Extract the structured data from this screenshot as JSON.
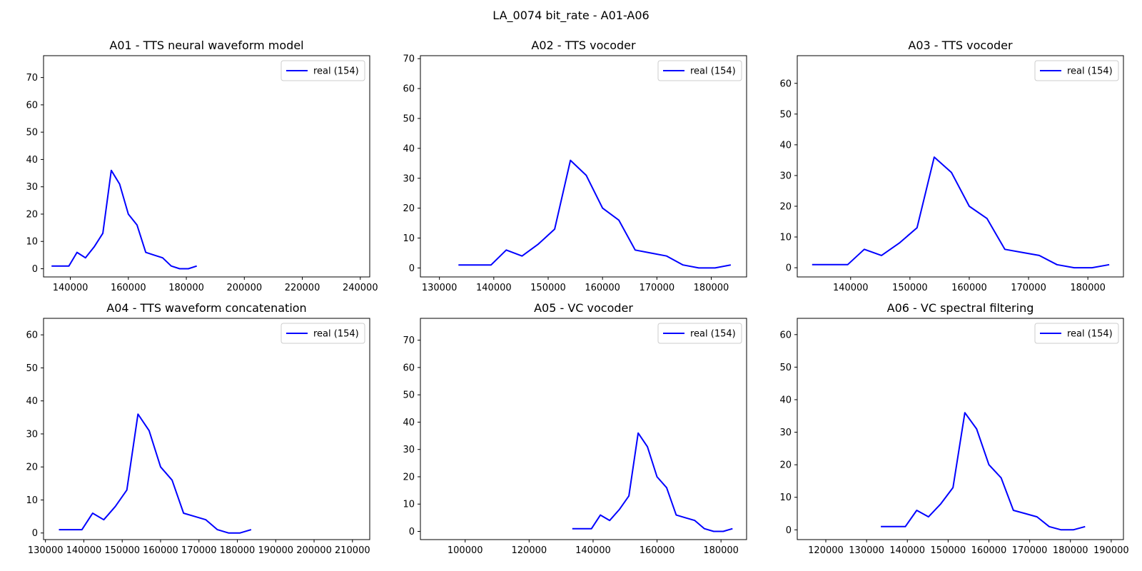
{
  "figure": {
    "suptitle": "LA_0074 bit_rate - A01-A06",
    "line_color": "#0000ff"
  },
  "chart_data": [
    {
      "type": "line",
      "title": "A01 - TTS neural waveform model",
      "xlabel": "",
      "ylabel": "",
      "xlim": [
        130750,
        243250
      ],
      "ylim": [
        -3,
        78
      ],
      "xticks": [
        140000,
        160000,
        180000,
        200000,
        220000,
        240000
      ],
      "yticks": [
        0,
        10,
        20,
        30,
        40,
        50,
        60,
        70
      ],
      "grid": false,
      "legend": "upper right",
      "series": [
        {
          "name": "real (154)",
          "color": "#0000ff",
          "x": [
            133500,
            136500,
            139500,
            142300,
            145200,
            148200,
            151200,
            154100,
            157000,
            160000,
            163000,
            166000,
            168900,
            171800,
            174800,
            177700,
            180700,
            183600
          ],
          "y": [
            1,
            1,
            1,
            6,
            4,
            8,
            13,
            36,
            31,
            20,
            16,
            6,
            5,
            4,
            1,
            0,
            0,
            1
          ]
        }
      ]
    },
    {
      "type": "line",
      "title": "A02 - TTS vocoder",
      "xlabel": "",
      "ylabel": "",
      "xlim": [
        126500,
        186500
      ],
      "ylim": [
        -3,
        71
      ],
      "xticks": [
        130000,
        140000,
        150000,
        160000,
        170000,
        180000
      ],
      "yticks": [
        0,
        10,
        20,
        30,
        40,
        50,
        60,
        70
      ],
      "grid": false,
      "legend": "upper right",
      "series": [
        {
          "name": "real (154)",
          "color": "#0000ff",
          "x": [
            133500,
            136500,
            139500,
            142300,
            145200,
            148200,
            151200,
            154100,
            157000,
            160000,
            163000,
            166000,
            168900,
            171800,
            174800,
            177700,
            180700,
            183600
          ],
          "y": [
            1,
            1,
            1,
            6,
            4,
            8,
            13,
            36,
            31,
            20,
            16,
            6,
            5,
            4,
            1,
            0,
            0,
            1
          ]
        }
      ]
    },
    {
      "type": "line",
      "title": "A03 - TTS vocoder",
      "xlabel": "",
      "ylabel": "",
      "xlim": [
        131000,
        186000
      ],
      "ylim": [
        -3,
        69
      ],
      "xticks": [
        140000,
        150000,
        160000,
        170000,
        180000
      ],
      "yticks": [
        0,
        10,
        20,
        30,
        40,
        50,
        60
      ],
      "grid": false,
      "legend": "upper right",
      "series": [
        {
          "name": "real (154)",
          "color": "#0000ff",
          "x": [
            133500,
            136500,
            139500,
            142300,
            145200,
            148200,
            151200,
            154100,
            157000,
            160000,
            163000,
            166000,
            168900,
            171800,
            174800,
            177700,
            180700,
            183600
          ],
          "y": [
            1,
            1,
            1,
            6,
            4,
            8,
            13,
            36,
            31,
            20,
            16,
            6,
            5,
            4,
            1,
            0,
            0,
            1
          ]
        }
      ]
    },
    {
      "type": "line",
      "title": "A04 - TTS waveform concatenation",
      "xlabel": "",
      "ylabel": "",
      "xlim": [
        129500,
        214500
      ],
      "ylim": [
        -2,
        65
      ],
      "xticks": [
        130000,
        140000,
        150000,
        160000,
        170000,
        180000,
        190000,
        200000,
        210000
      ],
      "yticks": [
        0,
        10,
        20,
        30,
        40,
        50,
        60
      ],
      "grid": false,
      "legend": "upper right",
      "series": [
        {
          "name": "real (154)",
          "color": "#0000ff",
          "x": [
            133500,
            136500,
            139500,
            142300,
            145200,
            148200,
            151200,
            154100,
            157000,
            160000,
            163000,
            166000,
            168900,
            171800,
            174800,
            177700,
            180700,
            183600
          ],
          "y": [
            1,
            1,
            1,
            6,
            4,
            8,
            13,
            36,
            31,
            20,
            16,
            6,
            5,
            4,
            1,
            0,
            0,
            1
          ]
        }
      ]
    },
    {
      "type": "line",
      "title": "A05 - VC vocoder",
      "xlabel": "",
      "ylabel": "",
      "xlim": [
        86000,
        188000
      ],
      "ylim": [
        -3,
        78
      ],
      "xticks": [
        100000,
        120000,
        140000,
        160000,
        180000
      ],
      "yticks": [
        0,
        10,
        20,
        30,
        40,
        50,
        60,
        70
      ],
      "grid": false,
      "legend": "upper right",
      "series": [
        {
          "name": "real (154)",
          "color": "#0000ff",
          "x": [
            133500,
            136500,
            139500,
            142300,
            145200,
            148200,
            151200,
            154100,
            157000,
            160000,
            163000,
            166000,
            168900,
            171800,
            174800,
            177700,
            180700,
            183600
          ],
          "y": [
            1,
            1,
            1,
            6,
            4,
            8,
            13,
            36,
            31,
            20,
            16,
            6,
            5,
            4,
            1,
            0,
            0,
            1
          ]
        }
      ]
    },
    {
      "type": "line",
      "title": "A06 - VC spectral filtering",
      "xlabel": "",
      "ylabel": "",
      "xlim": [
        113000,
        193000
      ],
      "ylim": [
        -3,
        65
      ],
      "xticks": [
        120000,
        130000,
        140000,
        150000,
        160000,
        170000,
        180000,
        190000
      ],
      "yticks": [
        0,
        10,
        20,
        30,
        40,
        50,
        60
      ],
      "grid": false,
      "legend": "upper right",
      "series": [
        {
          "name": "real (154)",
          "color": "#0000ff",
          "x": [
            133500,
            136500,
            139500,
            142300,
            145200,
            148200,
            151200,
            154100,
            157000,
            160000,
            163000,
            166000,
            168900,
            171800,
            174800,
            177700,
            180700,
            183600
          ],
          "y": [
            1,
            1,
            1,
            6,
            4,
            8,
            13,
            36,
            31,
            20,
            16,
            6,
            5,
            4,
            1,
            0,
            0,
            1
          ]
        }
      ]
    }
  ]
}
